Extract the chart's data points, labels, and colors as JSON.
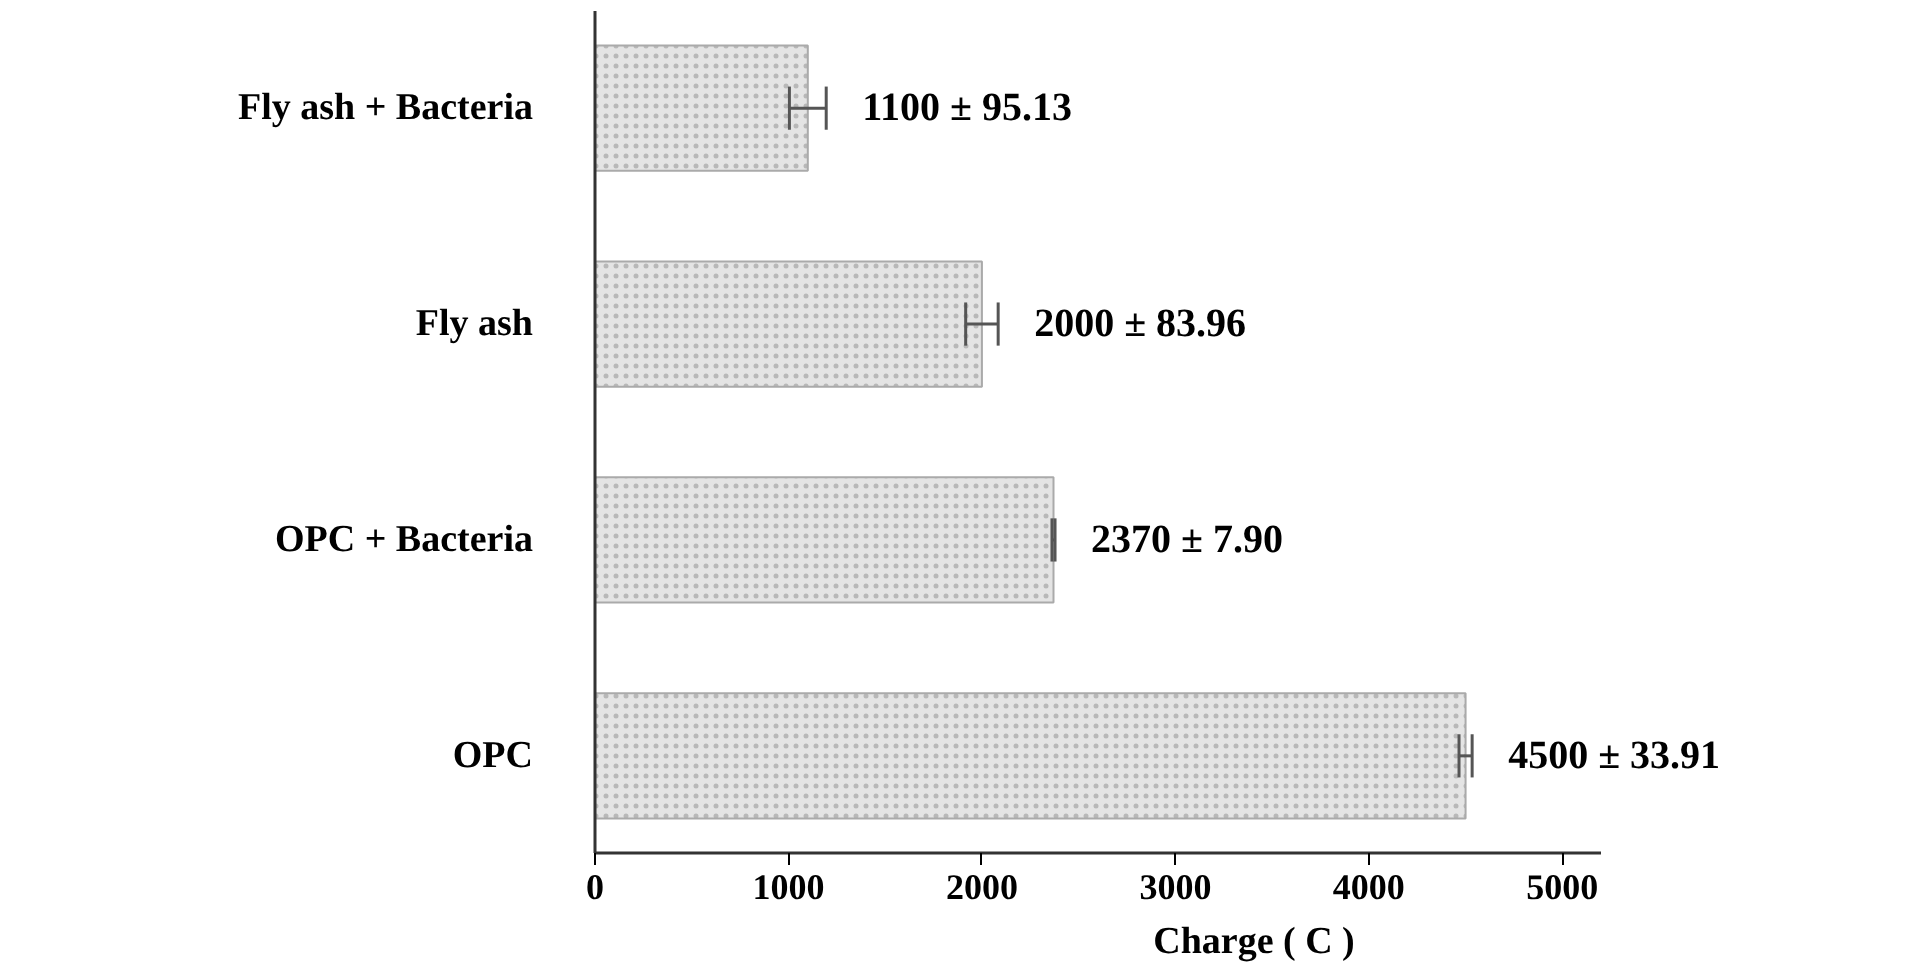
{
  "chart_data": {
    "type": "bar",
    "orientation": "horizontal",
    "xlabel": "Charge ( C )",
    "categories": [
      "Fly ash + Bacteria",
      "Fly ash",
      "OPC + Bacteria",
      "OPC"
    ],
    "values": [
      1100,
      2000,
      2370,
      4500
    ],
    "errors": [
      95.13,
      83.96,
      7.9,
      33.91
    ],
    "value_labels": [
      "1100 ±  95.13",
      "2000 ± 83.96",
      "2370 ± 7.90",
      "4500 ± 33.91"
    ],
    "color": "#e4e4e4",
    "xlim": [
      0,
      5200
    ],
    "xticks": [
      0,
      1000,
      2000,
      3000,
      4000,
      5000
    ],
    "grid": false
  }
}
